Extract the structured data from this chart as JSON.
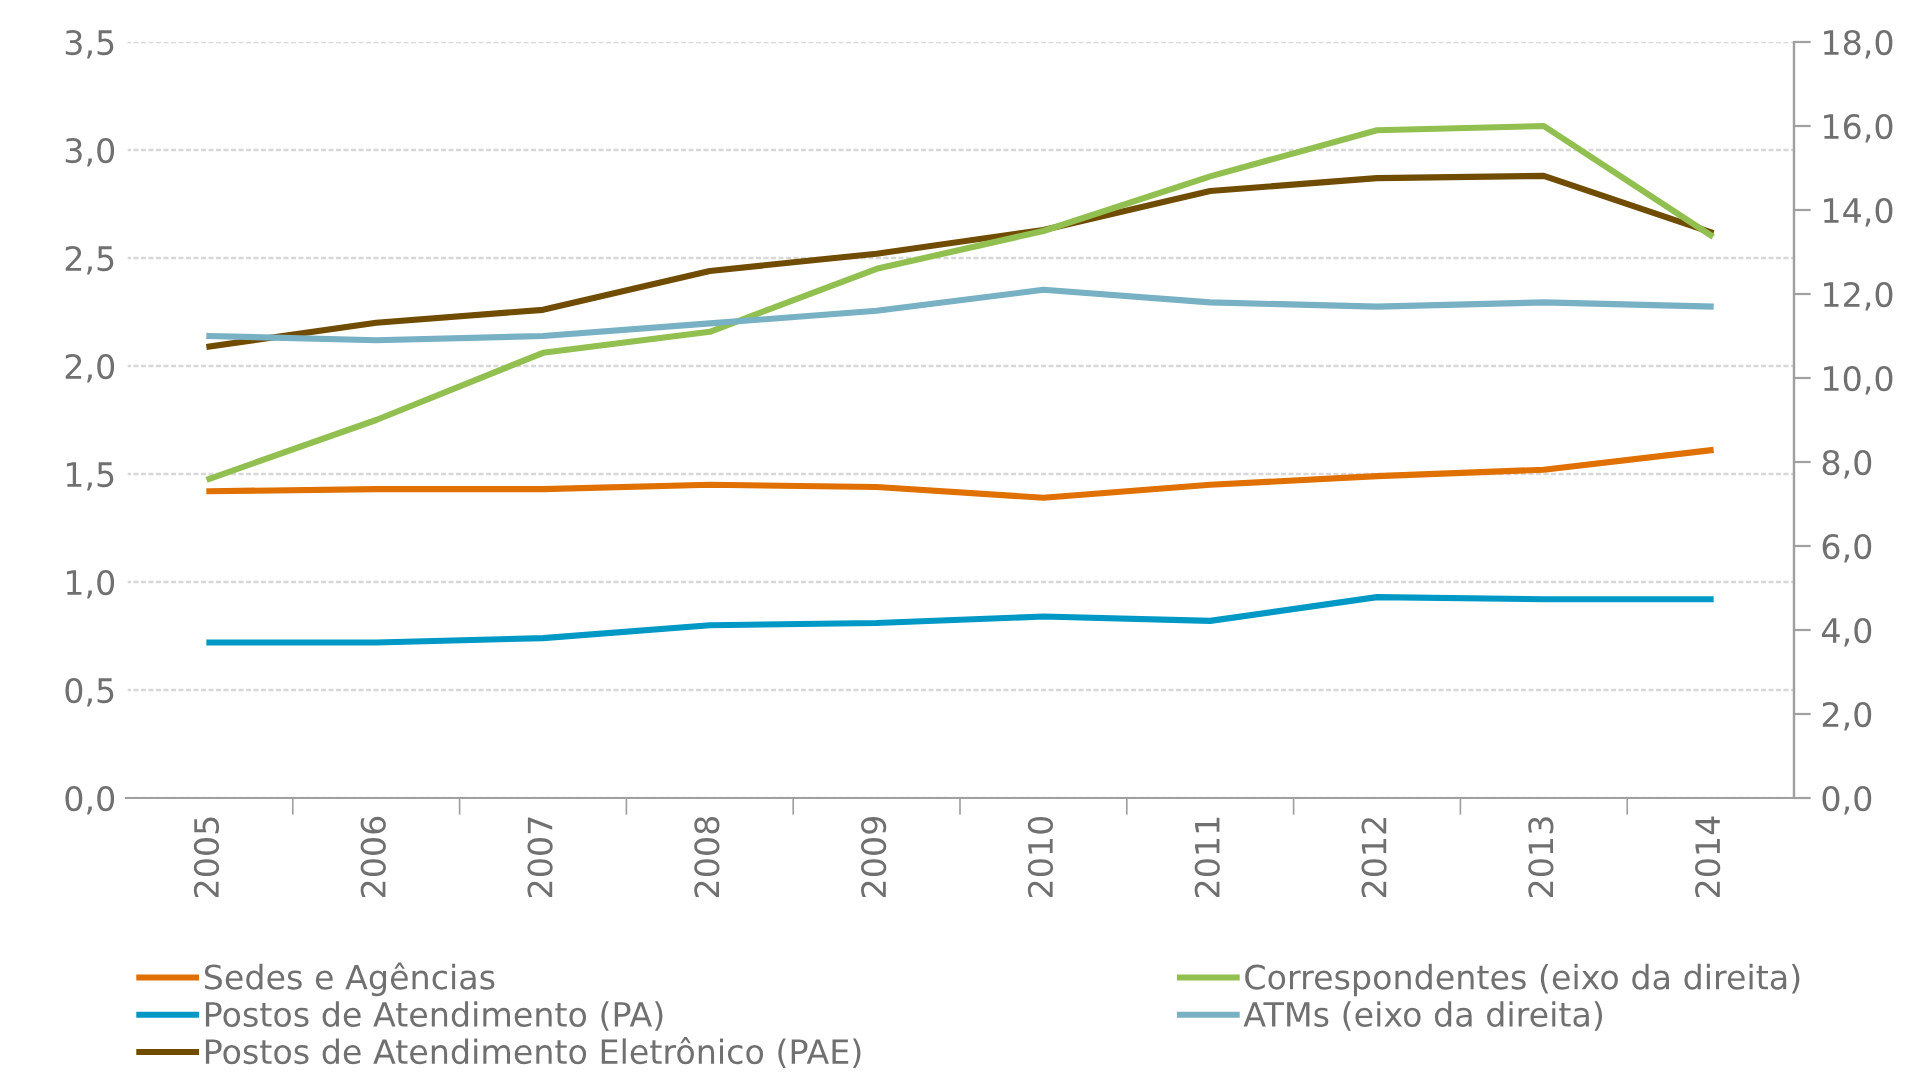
{
  "chart_data": {
    "type": "line",
    "categories": [
      "2005",
      "2006",
      "2007",
      "2008",
      "2009",
      "2010",
      "2011",
      "2012",
      "2013",
      "2014"
    ],
    "series": [
      {
        "name": "Sedes e Agências",
        "color": "#e07000",
        "values": [
          1.42,
          1.43,
          1.43,
          1.45,
          1.44,
          1.39,
          1.45,
          1.49,
          1.52,
          1.61
        ]
      },
      {
        "name": "Postos de Atendimento (PA)",
        "color": "#0099c6",
        "values": [
          0.72,
          0.72,
          0.74,
          0.8,
          0.81,
          0.84,
          0.82,
          0.93,
          0.92,
          0.92
        ]
      },
      {
        "name": "Postos de Atendimento Eletrônico (PAE)",
        "color": "#704c00",
        "values": [
          2.09,
          2.2,
          2.26,
          2.44,
          2.52,
          2.63,
          2.81,
          2.87,
          2.88,
          2.62
        ]
      },
      {
        "name": "Correspondentes (eixo da direita)",
        "color": "#92c050",
        "axis": "y2",
        "values": [
          7.6,
          9.0,
          10.6,
          11.1,
          12.6,
          13.5,
          14.8,
          15.9,
          16.0,
          13.4
        ]
      },
      {
        "name": "ATMs (eixo da direita)",
        "color": "#78b0c4",
        "axis": "y2",
        "values": [
          11.0,
          10.9,
          11.0,
          11.3,
          11.6,
          12.1,
          11.8,
          11.7,
          11.8,
          11.7
        ]
      }
    ],
    "ylim": [
      0,
      3.5
    ],
    "yticks": [
      {
        "value": 0,
        "label": "0,0"
      },
      {
        "value": 0.5,
        "label": "0,5"
      },
      {
        "value": 1,
        "label": "1,0"
      },
      {
        "value": 1.5,
        "label": "1,5"
      },
      {
        "value": 2,
        "label": "2,0"
      },
      {
        "value": 2.5,
        "label": "2,5"
      },
      {
        "value": 3,
        "label": "3,0"
      },
      {
        "value": 3.5,
        "label": "3,5"
      }
    ],
    "y2lim": [
      0,
      18
    ],
    "y2ticks": [
      {
        "value": 0,
        "label": "0,0"
      },
      {
        "value": 2,
        "label": "2,0"
      },
      {
        "value": 4,
        "label": "4,0"
      },
      {
        "value": 6,
        "label": "6,0"
      },
      {
        "value": 8,
        "label": "8,0"
      },
      {
        "value": 10,
        "label": "10,0"
      },
      {
        "value": 12,
        "label": "12,0"
      },
      {
        "value": 14,
        "label": "14,0"
      },
      {
        "value": 16,
        "label": "16,0"
      },
      {
        "value": 18,
        "label": "18,0"
      }
    ],
    "grid": "y",
    "legend": "bottom",
    "marker": "none",
    "line_style": "solid"
  }
}
